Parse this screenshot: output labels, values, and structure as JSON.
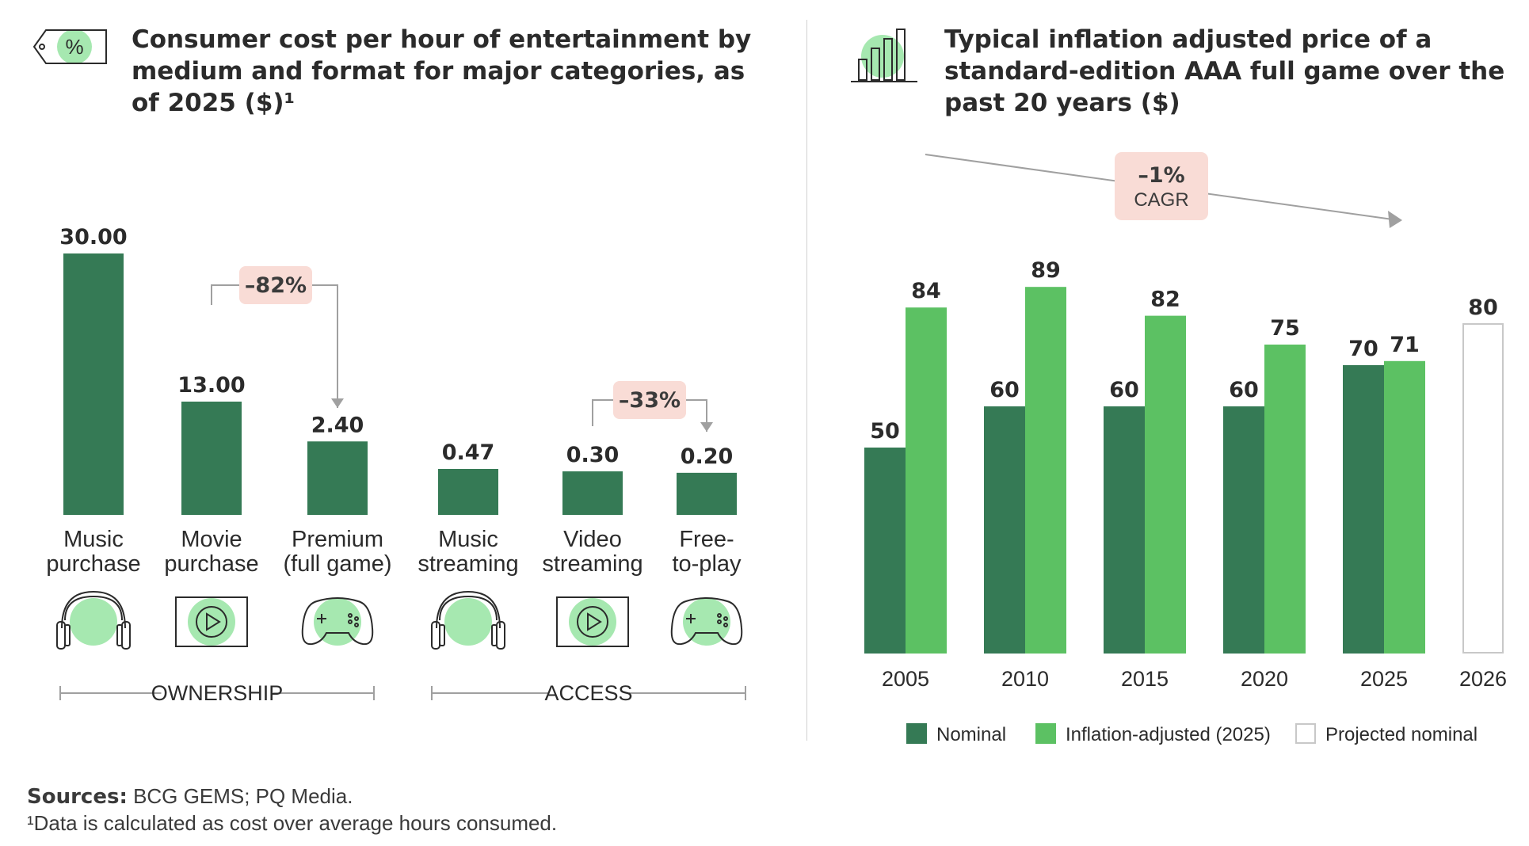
{
  "left": {
    "title_lines": [
      "Consumer cost per hour of entertainment by",
      "medium and format for major categories, as",
      "of 2025 ($)¹"
    ],
    "icon": "percent-tag-icon"
  },
  "right": {
    "title_lines": [
      "Typical inflation adjusted price of a",
      "standard-edition AAA full game over the",
      "past 20 years ($)"
    ],
    "icon": "bar-chart-icon"
  },
  "colors": {
    "dark_green": "#357a55",
    "light_green": "#5cc163",
    "icon_green": "#a6e8b0",
    "annotation_bg": "#f9dcd6",
    "axis_gray": "#a0a0a0"
  },
  "chart_data": [
    {
      "type": "bar",
      "title": "Consumer cost per hour of entertainment by medium and format for major categories, as of 2025 ($)¹",
      "categories": [
        {
          "lines": [
            "Music",
            "purchase"
          ],
          "icon": "headphones-icon"
        },
        {
          "lines": [
            "Movie",
            "purchase"
          ],
          "icon": "video-player-icon"
        },
        {
          "lines": [
            "Premium",
            "(full game)"
          ],
          "icon": "gamepad-icon"
        },
        {
          "lines": [
            "Music",
            "streaming"
          ],
          "icon": "headphones-icon"
        },
        {
          "lines": [
            "Video",
            "streaming"
          ],
          "icon": "video-player-icon"
        },
        {
          "lines": [
            "Free-",
            "to-play"
          ],
          "icon": "gamepad-icon"
        }
      ],
      "values": [
        30.0,
        13.0,
        2.4,
        0.47,
        0.3,
        0.2
      ],
      "value_labels": [
        "30.00",
        "13.00",
        "2.40",
        "0.47",
        "0.30",
        "0.20"
      ],
      "groups": [
        {
          "label": "OWNERSHIP"
        },
        {
          "label": "ACCESS"
        }
      ],
      "annotations": [
        {
          "text": "–82%"
        },
        {
          "text": "–33%"
        }
      ]
    },
    {
      "type": "bar",
      "title": "Typical inflation adjusted price of a standard-edition AAA full game over the past 20 years ($)",
      "categories": [
        "2005",
        "2010",
        "2015",
        "2020",
        "2025",
        "2026"
      ],
      "series": [
        {
          "name": "Nominal",
          "values": [
            50,
            60,
            60,
            60,
            70,
            null
          ]
        },
        {
          "name": "Inflation-adjusted (2025)",
          "values": [
            84,
            89,
            82,
            75,
            71,
            null
          ]
        },
        {
          "name": "Projected nominal",
          "values": [
            null,
            null,
            null,
            null,
            null,
            80
          ]
        }
      ],
      "annotation": {
        "value": "–1%",
        "label": "CAGR"
      },
      "legend_position": "bottom"
    }
  ],
  "footer": {
    "sources_label": "Sources:",
    "sources_text": " BCG GEMS; PQ Media.",
    "note": "¹Data is calculated as cost over average hours consumed."
  }
}
